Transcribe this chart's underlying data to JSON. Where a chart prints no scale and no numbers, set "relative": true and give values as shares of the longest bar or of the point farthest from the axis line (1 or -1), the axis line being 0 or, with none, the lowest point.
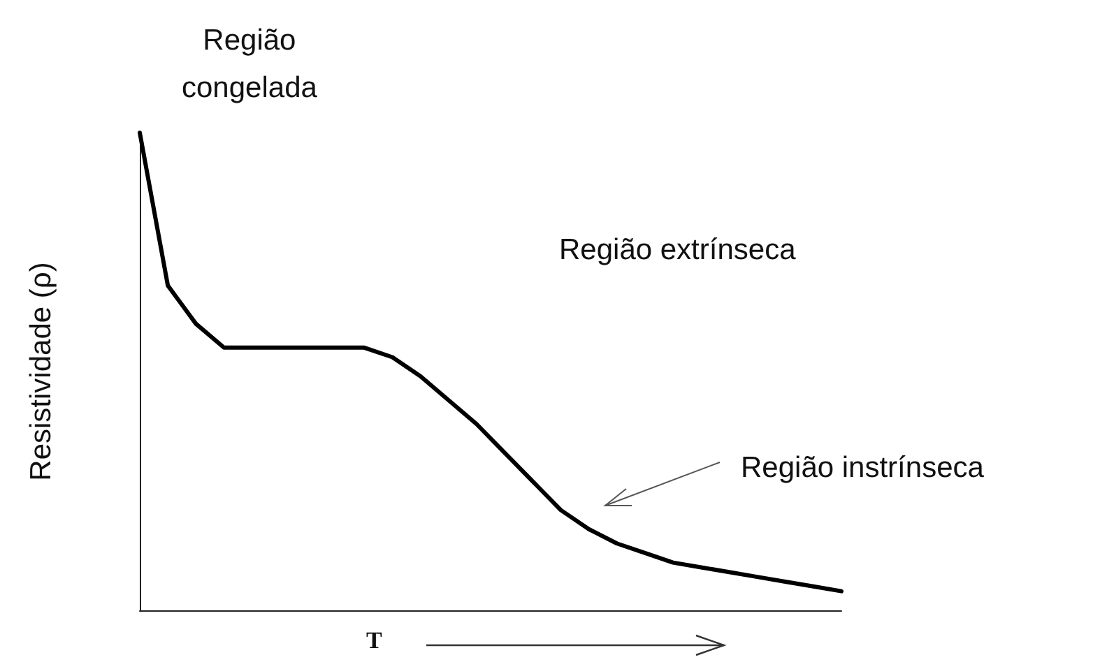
{
  "chart_data": {
    "type": "line",
    "relative": true,
    "color": "#000000",
    "marker": "none",
    "line_style": "solid",
    "grid": false,
    "xlabel": "T",
    "ylabel": "Resistividade (ρ)",
    "annotations": [
      "Região\ncongelada",
      "Região extrínseca",
      "Região instrínseca"
    ],
    "categories": [
      null,
      null,
      null,
      null,
      null,
      null,
      null,
      null,
      null,
      null,
      null,
      null,
      null,
      null,
      null,
      null,
      null,
      null,
      null,
      null,
      null,
      null,
      null,
      null,
      null,
      null
    ],
    "values": [
      1.0,
      0.68,
      0.6,
      0.55,
      0.55,
      0.55,
      0.55,
      0.55,
      0.55,
      0.53,
      0.49,
      0.44,
      0.39,
      0.33,
      0.27,
      0.21,
      0.17,
      0.14,
      0.12,
      0.1,
      0.09,
      0.08,
      0.07,
      0.06,
      0.05,
      0.04
    ]
  }
}
